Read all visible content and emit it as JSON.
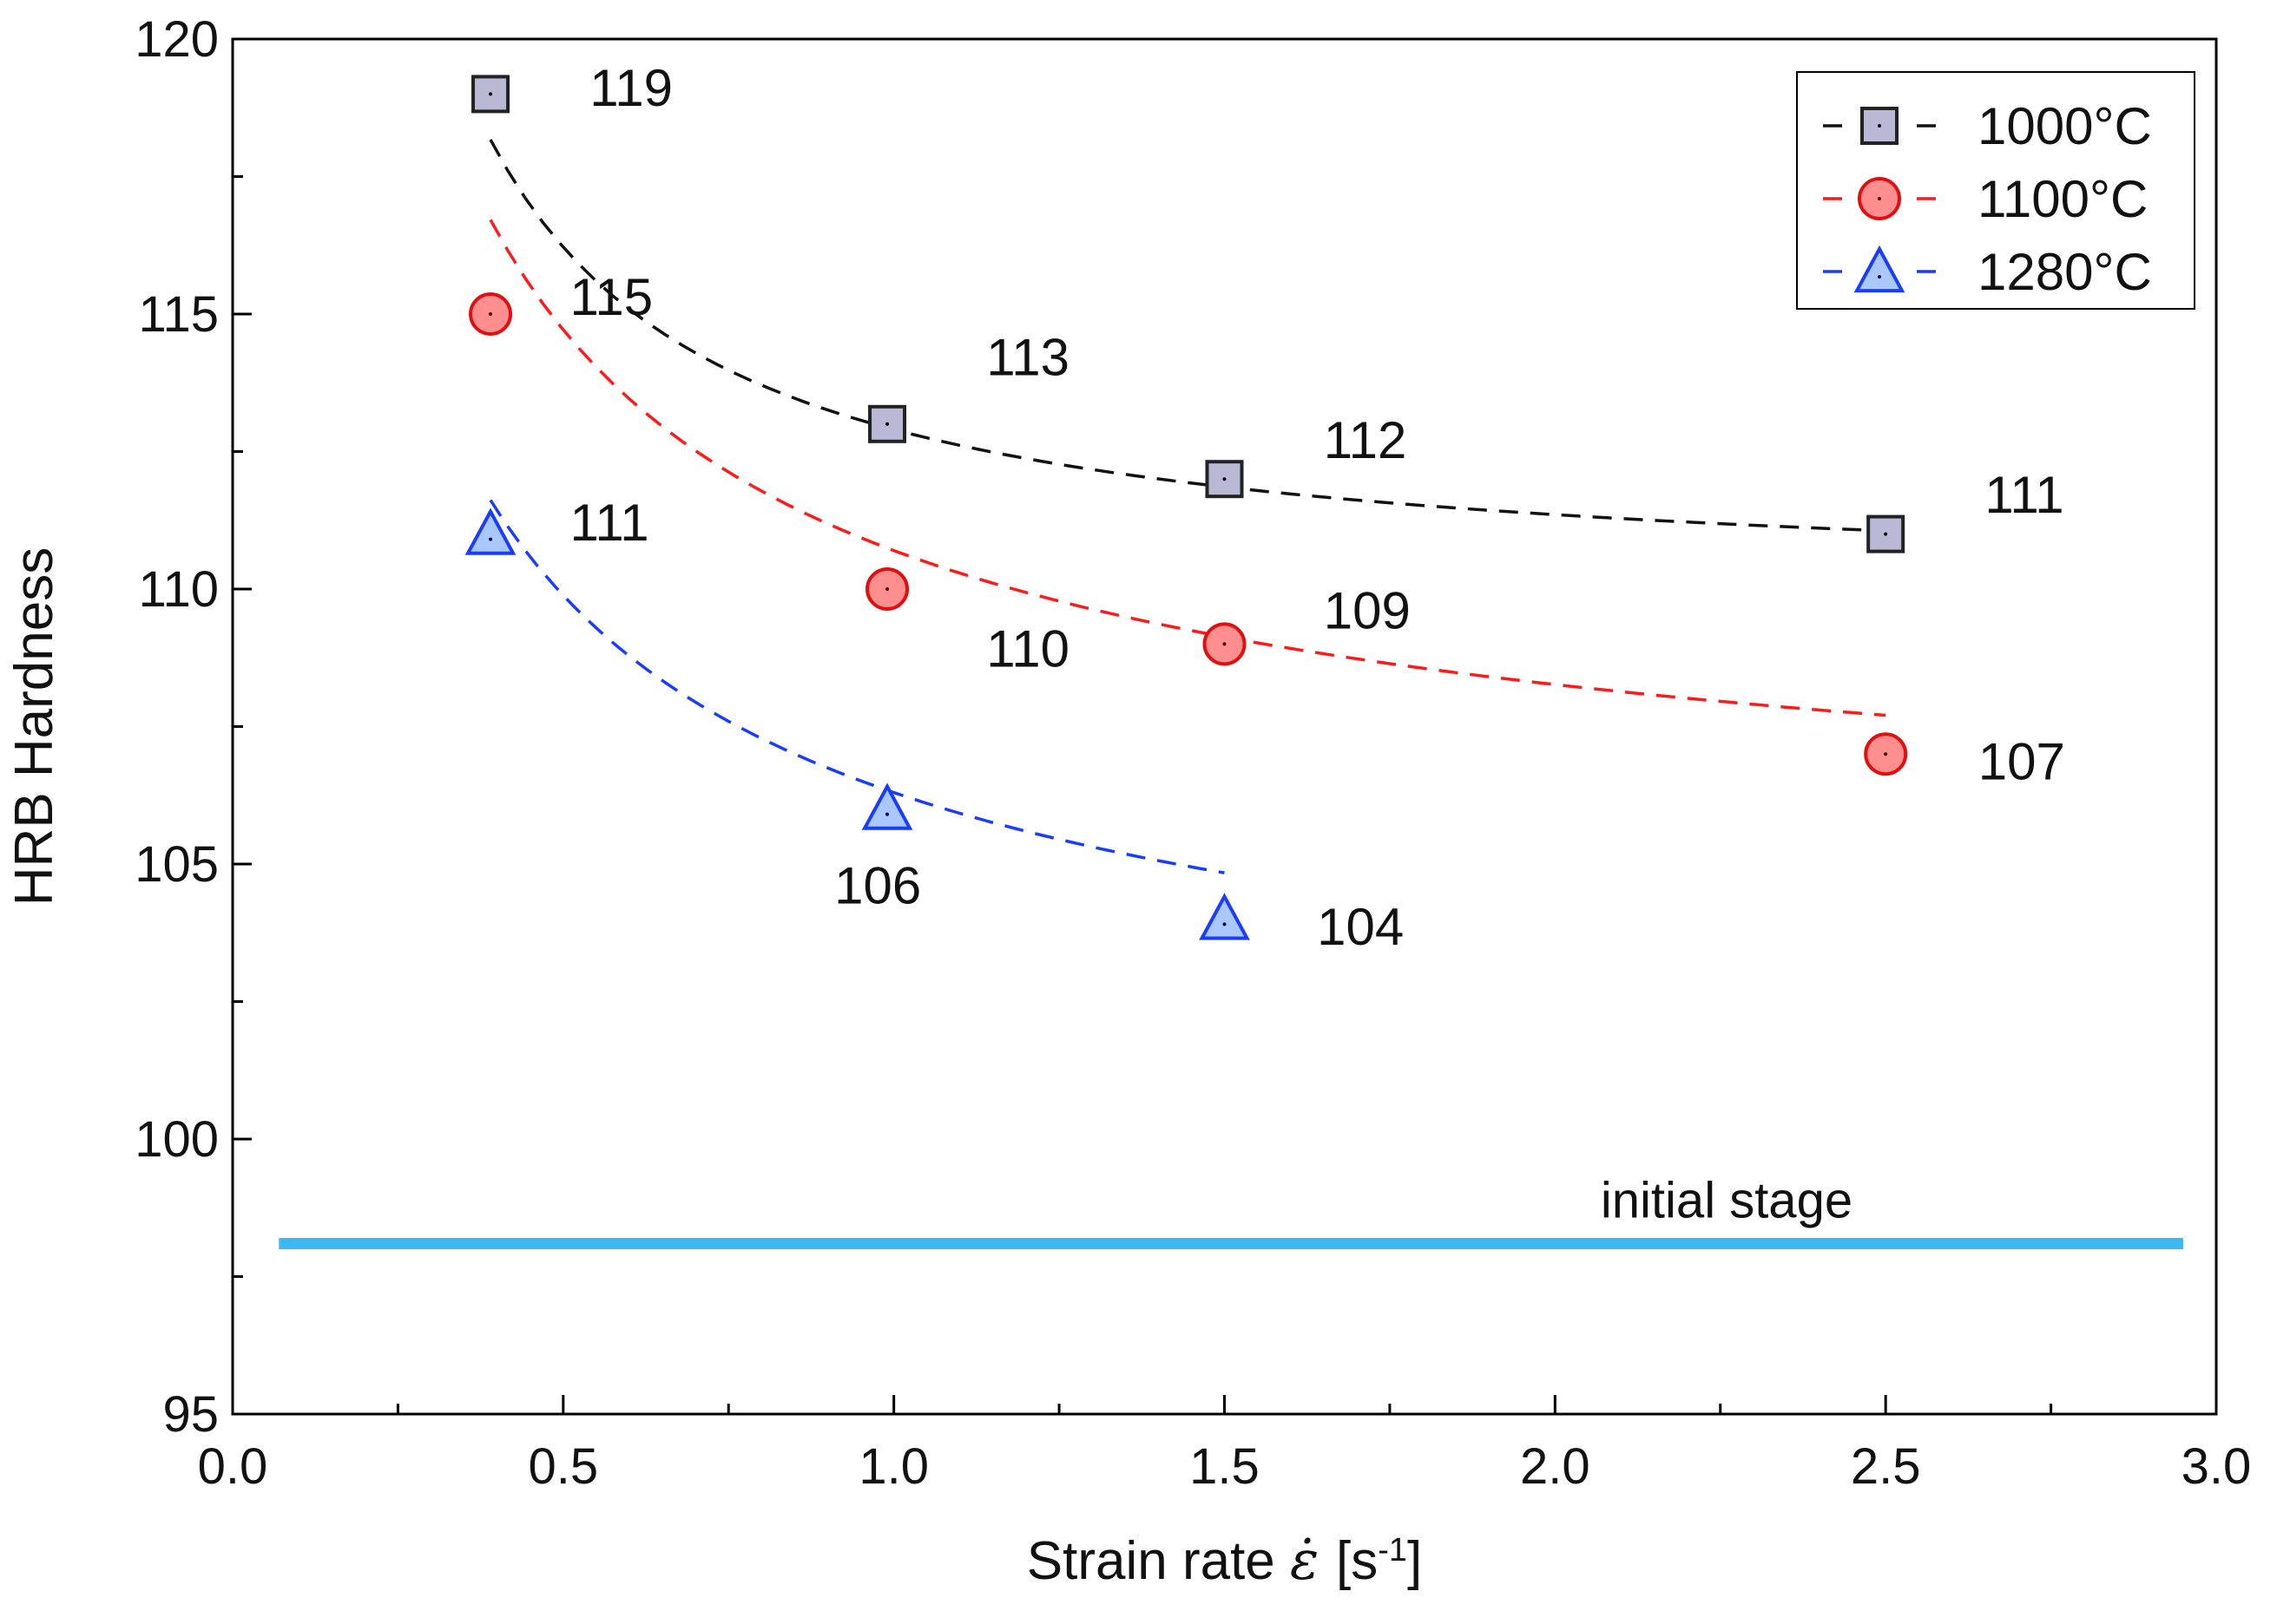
{
  "chart_data": {
    "type": "line",
    "xlabel_prefix": "Strain rate",
    "xlabel_symbol": "ε̇",
    "xlabel_unit_open": "[s",
    "xlabel_unit_exp": "-1",
    "xlabel_unit_close": "]",
    "ylabel": "HRB Hardness",
    "xlim": [
      0.0,
      3.0
    ],
    "ylim": [
      95,
      120
    ],
    "xticks": [
      0.0,
      0.5,
      1.0,
      1.5,
      2.0,
      2.5,
      3.0
    ],
    "xtick_labels": [
      "0.0",
      "0.5",
      "1.0",
      "1.5",
      "2.0",
      "2.5",
      "3.0"
    ],
    "yticks": [
      95,
      100,
      105,
      110,
      115,
      120
    ],
    "ytick_labels": [
      "95",
      "100",
      "105",
      "110",
      "115",
      "120"
    ],
    "legend_position": "top-right",
    "series": [
      {
        "name": "1000°C",
        "marker": "square",
        "line_color": "#111111",
        "fill_color": "#b9b9d6",
        "edge_color": "#222222",
        "x": [
          0.39,
          0.99,
          1.5,
          2.5
        ],
        "values": [
          119,
          113,
          112,
          111
        ],
        "labels": [
          "119",
          "113",
          "112",
          "111"
        ],
        "label_offsets": [
          [
            0.15,
            0.1
          ],
          [
            0.15,
            1.2
          ],
          [
            0.15,
            0.7
          ],
          [
            0.15,
            0.7
          ]
        ]
      },
      {
        "name": "1100°C",
        "marker": "circle",
        "line_color": "#ff1a1a",
        "fill_color": "#ff8f8f",
        "edge_color": "#e01010",
        "x": [
          0.39,
          0.99,
          1.5,
          2.5
        ],
        "values": [
          115,
          110,
          109,
          107
        ],
        "labels": [
          "115",
          "110",
          "109",
          "107"
        ],
        "label_offsets": [
          [
            0.12,
            0.3
          ],
          [
            0.15,
            -1.1
          ],
          [
            0.15,
            0.6
          ],
          [
            0.14,
            -0.15
          ]
        ]
      },
      {
        "name": "1280°C",
        "marker": "triangle",
        "line_color": "#1a3cff",
        "fill_color": "#a8c8ff",
        "edge_color": "#1a3cff",
        "x": [
          0.39,
          0.99,
          1.5
        ],
        "values": [
          111,
          106,
          104
        ],
        "labels": [
          "111",
          "106",
          "104"
        ],
        "label_offsets": [
          [
            0.12,
            0.2
          ],
          [
            -0.08,
            -1.4
          ],
          [
            0.14,
            -0.15
          ]
        ]
      }
    ],
    "fit_curves": [
      {
        "series": "1000°C",
        "x_start": 0.39,
        "x_end": 2.5,
        "a": 110.0,
        "b": 2.9,
        "p": 1.1
      },
      {
        "series": "1100°C",
        "x_start": 0.39,
        "x_end": 2.5,
        "a": 104.5,
        "b": 6.2,
        "p": 0.72
      },
      {
        "series": "1280°C",
        "x_start": 0.39,
        "x_end": 1.5,
        "a": 100.0,
        "b": 6.3,
        "p": 0.65
      }
    ],
    "reference_line": {
      "label": "initial stage",
      "y": 98.1,
      "x_start": 0.07,
      "x_end": 2.95,
      "color": "#3db8f5"
    }
  }
}
